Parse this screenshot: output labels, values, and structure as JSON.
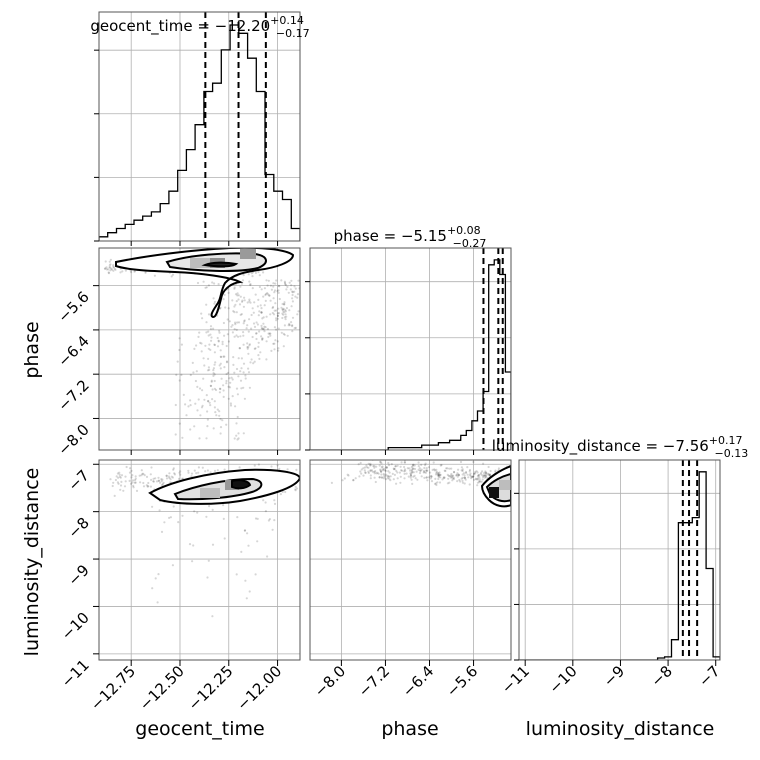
{
  "chart_data": {
    "type": "corner",
    "parameters": [
      "geocent_time",
      "phase",
      "luminosity_distance"
    ],
    "axis_labels": {
      "geocent_time": "geocent_time",
      "phase": "phase",
      "luminosity_distance": "luminosity_distance"
    },
    "titles": [
      {
        "parameter": "geocent_time",
        "text": "geocent_time = −12.20",
        "sup": "+0.14",
        "sub": "−0.17"
      },
      {
        "parameter": "phase",
        "text": "phase = −5.15",
        "sup": "+0.08",
        "sub": "−0.27"
      },
      {
        "parameter": "luminosity_distance",
        "text": "luminosity_distance = −7.56",
        "sup": "+0.17",
        "sub": "−0.13"
      }
    ],
    "ranges": {
      "geocent_time": [
        -12.915,
        -11.885
      ],
      "phase": [
        -8.57,
        -4.92
      ],
      "luminosity_distance": [
        -11.13,
        -6.91
      ]
    },
    "ticks": {
      "geocent_time": [
        -12.75,
        -12.5,
        -12.25,
        -12.0
      ],
      "phase": [
        -8.0,
        -7.2,
        -6.4,
        -5.6
      ],
      "luminosity_distance": [
        -11,
        -10,
        -9,
        -8,
        -7
      ]
    },
    "tick_labels": {
      "geocent_time": [
        "−12.75",
        "−12.50",
        "−12.25",
        "−12.00"
      ],
      "phase": [
        "−8.0",
        "−7.2",
        "−6.4",
        "−5.6"
      ],
      "luminosity_distance": [
        "−11",
        "−10",
        "−9",
        "−8",
        "−7"
      ]
    },
    "quantiles": {
      "geocent_time": [
        -12.37,
        -12.2,
        -12.06
      ],
      "phase": [
        -5.42,
        -5.15,
        -5.07
      ],
      "luminosity_distance": [
        -7.69,
        -7.56,
        -7.39
      ]
    },
    "histograms": {
      "geocent_time": {
        "edges_range": [
          -12.915,
          -11.885
        ],
        "counts": [
          0.5,
          1,
          1.5,
          2,
          2.5,
          3,
          3.5,
          4.5,
          6,
          8.5,
          11,
          14,
          18,
          19,
          23,
          26,
          25,
          22,
          18,
          8,
          6,
          5,
          1.5
        ]
      },
      "phase": {
        "edges_range": [
          -8.57,
          -4.92
        ],
        "counts": [
          0,
          0,
          0,
          0,
          0,
          0,
          0,
          0,
          0,
          0,
          0,
          0,
          0,
          0,
          0.25,
          0.25,
          0.25,
          0.25,
          0.25,
          0.25,
          0.5,
          0.5,
          0.5,
          0.75,
          0.75,
          1,
          1,
          1.5,
          2,
          3,
          4,
          6,
          19,
          19.5,
          18,
          8
        ]
      },
      "luminosity_distance": {
        "edges_range": [
          -11.13,
          -6.91
        ],
        "counts": [
          0,
          0,
          0,
          0,
          0,
          0,
          0,
          0,
          0,
          0,
          0,
          0,
          0,
          0,
          0,
          0,
          0,
          0,
          0,
          0,
          0.2,
          0.3,
          2,
          13.5,
          13.5,
          14,
          18.5,
          9,
          0.3
        ]
      }
    },
    "grid": true,
    "colors": {
      "data": "#000000",
      "grid": "#b0b0b0",
      "points": "#000000"
    }
  }
}
